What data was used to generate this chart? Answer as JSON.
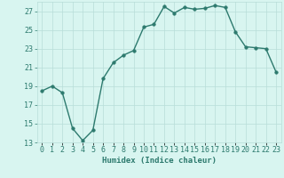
{
  "x": [
    0,
    1,
    2,
    3,
    4,
    5,
    6,
    7,
    8,
    9,
    10,
    11,
    12,
    13,
    14,
    15,
    16,
    17,
    18,
    19,
    20,
    21,
    22,
    23
  ],
  "y": [
    18.5,
    19.0,
    18.3,
    14.5,
    13.2,
    14.3,
    19.8,
    21.5,
    22.3,
    22.8,
    25.3,
    25.6,
    27.5,
    26.8,
    27.4,
    27.2,
    27.3,
    27.6,
    27.4,
    24.8,
    23.2,
    23.1,
    23.0,
    20.5
  ],
  "line_color": "#2d7a6e",
  "marker_color": "#2d7a6e",
  "bg_color": "#d8f5f0",
  "grid_color": "#b8ddd8",
  "title": "",
  "xlabel": "Humidex (Indice chaleur)",
  "ylabel": "",
  "ylim": [
    13,
    28
  ],
  "xlim": [
    -0.5,
    23.5
  ],
  "yticks": [
    13,
    15,
    17,
    19,
    21,
    23,
    25,
    27
  ],
  "xtick_labels": [
    "0",
    "1",
    "2",
    "3",
    "4",
    "5",
    "6",
    "7",
    "8",
    "9",
    "10",
    "11",
    "12",
    "13",
    "14",
    "15",
    "16",
    "17",
    "18",
    "19",
    "20",
    "21",
    "22",
    "23"
  ],
  "tick_color": "#2d7a6e",
  "xlabel_fontsize": 6.5,
  "tick_fontsize": 6.0,
  "line_width": 1.0,
  "marker_size": 2.5
}
